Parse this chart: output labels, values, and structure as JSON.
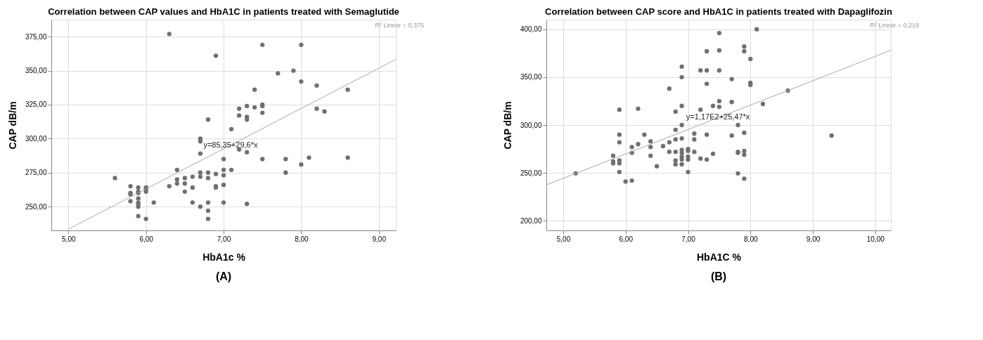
{
  "chart_data": [
    {
      "type": "scatter",
      "title": "Correlation between CAP values and HbA1C in patients treated with Semaglutide",
      "xlabel": "HbA1c %",
      "ylabel": "CAP dB/m",
      "xlim": [
        4.78,
        9.22
      ],
      "ylim": [
        232.5,
        387.5
      ],
      "xticks": [
        {
          "value": 5,
          "label": "5,00"
        },
        {
          "value": 6,
          "label": "6,00"
        },
        {
          "value": 7,
          "label": "7,00"
        },
        {
          "value": 8,
          "label": "8,00"
        },
        {
          "value": 9,
          "label": "9,00"
        }
      ],
      "yticks": [
        {
          "value": 250,
          "label": "250,00"
        },
        {
          "value": 275,
          "label": "275,00"
        },
        {
          "value": 300,
          "label": "300,00"
        },
        {
          "value": 325,
          "label": "325,00"
        },
        {
          "value": 350,
          "label": "350,00"
        },
        {
          "value": 375,
          "label": "375,00"
        }
      ],
      "grid": true,
      "series": [
        {
          "marker": "circle",
          "color": "#707070",
          "x": [
            5.6,
            5.8,
            5.8,
            5.8,
            5.8,
            5.9,
            5.9,
            5.9,
            5.9,
            5.9,
            5.9,
            5.9,
            5.9,
            6.0,
            6.0,
            6.0,
            6.0,
            6.1,
            6.3,
            6.3,
            6.4,
            6.4,
            6.4,
            6.5,
            6.5,
            6.5,
            6.6,
            6.6,
            6.6,
            6.7,
            6.7,
            6.7,
            6.7,
            6.7,
            6.7,
            6.8,
            6.8,
            6.8,
            6.8,
            6.8,
            6.8,
            6.9,
            6.9,
            6.9,
            6.9,
            7.0,
            7.0,
            7.0,
            7.0,
            7.0,
            7.1,
            7.1,
            7.2,
            7.2,
            7.2,
            7.3,
            7.3,
            7.3,
            7.3,
            7.3,
            7.4,
            7.4,
            7.5,
            7.5,
            7.5,
            7.5,
            7.5,
            7.7,
            7.8,
            7.8,
            7.9,
            8.0,
            8.0,
            8.0,
            8.1,
            8.2,
            8.2,
            8.3,
            8.6,
            8.6
          ],
          "values": [
            271,
            265,
            260,
            259,
            254,
            264,
            261,
            260,
            256,
            253,
            252,
            250,
            243,
            264,
            263,
            261,
            241,
            253,
            377,
            265,
            277,
            270,
            267,
            271,
            267,
            261,
            272,
            264,
            253,
            300,
            298,
            289,
            275,
            272,
            250,
            314,
            275,
            271,
            253,
            247,
            241,
            361,
            274,
            265,
            264,
            285,
            277,
            273,
            266,
            253,
            307,
            277,
            322,
            317,
            292,
            324,
            316,
            314,
            290,
            252,
            336,
            323,
            369,
            325,
            324,
            319,
            285,
            348,
            285,
            275,
            350,
            369,
            342,
            281,
            286,
            339,
            322,
            320,
            336,
            286
          ]
        },
        {
          "type": "line",
          "marker": "none",
          "color": "#a8a8a8",
          "x": [
            5.0,
            9.22
          ],
          "values": [
            233.4,
            358.3
          ]
        }
      ],
      "annotations": [
        {
          "text": "y=85,35+29,6*x",
          "x": 7.09,
          "y": 295
        },
        "R² Linear = 0,375",
        "(A)"
      ]
    },
    {
      "type": "scatter",
      "title": "Correlation between CAP score and HbA1C in patients treated with Dapaglifozin",
      "xlabel": "HbA1C %",
      "ylabel": "CAP dB/m",
      "xlim": [
        4.73,
        10.25
      ],
      "ylim": [
        190,
        410
      ],
      "xticks": [
        {
          "value": 5,
          "label": "5,00"
        },
        {
          "value": 6,
          "label": "6,00"
        },
        {
          "value": 7,
          "label": "7,00"
        },
        {
          "value": 8,
          "label": "8,00"
        },
        {
          "value": 9,
          "label": "9,00"
        },
        {
          "value": 10,
          "label": "10,00"
        }
      ],
      "yticks": [
        {
          "value": 200,
          "label": "200,00"
        },
        {
          "value": 250,
          "label": "250,00"
        },
        {
          "value": 300,
          "label": "300,00"
        },
        {
          "value": 350,
          "label": "350,00"
        },
        {
          "value": 400,
          "label": "400,00"
        }
      ],
      "grid": true,
      "series": [
        {
          "marker": "circle",
          "color": "#707070",
          "x": [
            5.2,
            5.8,
            5.8,
            5.8,
            5.9,
            5.9,
            5.9,
            5.9,
            5.9,
            5.9,
            6.0,
            6.1,
            6.1,
            6.1,
            6.2,
            6.2,
            6.3,
            6.4,
            6.4,
            6.4,
            6.5,
            6.6,
            6.7,
            6.7,
            6.7,
            6.8,
            6.8,
            6.8,
            6.8,
            6.8,
            6.8,
            6.9,
            6.9,
            6.9,
            6.9,
            6.9,
            6.9,
            6.9,
            6.9,
            6.9,
            6.9,
            7.0,
            7.0,
            7.0,
            7.0,
            7.0,
            7.1,
            7.1,
            7.1,
            7.2,
            7.2,
            7.2,
            7.3,
            7.3,
            7.3,
            7.3,
            7.3,
            7.4,
            7.4,
            7.5,
            7.5,
            7.5,
            7.5,
            7.5,
            7.7,
            7.7,
            7.7,
            7.8,
            7.8,
            7.8,
            7.8,
            7.9,
            7.9,
            7.9,
            7.9,
            7.9,
            7.9,
            8.0,
            8.0,
            8.0,
            8.1,
            8.2,
            8.6,
            9.3
          ],
          "values": [
            249.5,
            268,
            262,
            260,
            316,
            290,
            282,
            263,
            260,
            251,
            241,
            277,
            271,
            242,
            317,
            280,
            290,
            283,
            277,
            268,
            257,
            278,
            338,
            282,
            272,
            314,
            295,
            285,
            272,
            263,
            259,
            361,
            350,
            320,
            300,
            286,
            274,
            271,
            267,
            264,
            259,
            275,
            273,
            267,
            264,
            251,
            291,
            285,
            272,
            357,
            316,
            265,
            377,
            357,
            343,
            290,
            264,
            320,
            270,
            396,
            378,
            357,
            325,
            319,
            348,
            324,
            289,
            300,
            272,
            271,
            249.5,
            382,
            377,
            292,
            273,
            269,
            244,
            369,
            344,
            342,
            400,
            322,
            336,
            289
          ]
        },
        {
          "type": "line",
          "marker": "none",
          "color": "#a8a8a8",
          "x": [
            4.73,
            10.25
          ],
          "values": [
            237.5,
            378.1
          ]
        }
      ],
      "annotations": [
        {
          "text": "y=1,17E2+25,47*x",
          "x": 7.48,
          "y": 308
        },
        "R² Linear = 0,219",
        "(B)"
      ]
    }
  ]
}
